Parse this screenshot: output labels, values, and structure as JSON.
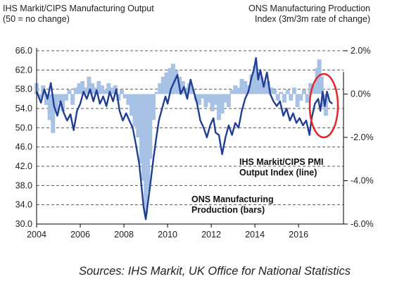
{
  "header": {
    "left_title": "IHS Markit/CIPS Manufacturing Output",
    "left_subtitle": "(50 = no change)",
    "right_title": "ONS Manufacturing Production",
    "right_subtitle": "Index (3m/3m rate of change)"
  },
  "annotations": {
    "line_label_1": "IHS Markit/CIPS PMI",
    "line_label_2": "Output Index (line)",
    "bar_label_1": "ONS Manufacturing",
    "bar_label_2": "Production (bars)"
  },
  "source": "Sources: IHS Markit, UK Office for National Statistics",
  "colors": {
    "line": "#1f3e94",
    "bars": "#a8c2e6",
    "highlight_circle": "#e3262b",
    "grid": "#555555"
  },
  "chart_data": {
    "type": "line",
    "x_ticks": [
      "2004",
      "2006",
      "2008",
      "2010",
      "2012",
      "2014",
      "2016"
    ],
    "xlim": [
      2004,
      2017.8
    ],
    "y_left": {
      "ticks": [
        "66.0",
        "62.0",
        "58.0",
        "54.0",
        "50.0",
        "46.0",
        "42.0",
        "38.0",
        "34.0",
        "30.0"
      ],
      "ylim": [
        30,
        66
      ]
    },
    "y_right": {
      "ticks": [
        "2.0%",
        "0.0%",
        "-2.0%",
        "-4.0%",
        "-6.0%"
      ],
      "ylim": [
        -6.0,
        2.0
      ]
    },
    "grid": "horizontal dashed",
    "highlight": "red ellipse around most recent data (2017)",
    "series": [
      {
        "name": "IHS Markit/CIPS PMI Output Index (line)",
        "axis": "left",
        "points": [
          [
            2004.0,
            57.5
          ],
          [
            2004.2,
            55.2
          ],
          [
            2004.35,
            58.0
          ],
          [
            2004.5,
            56.0
          ],
          [
            2004.65,
            59.3
          ],
          [
            2004.8,
            54.5
          ],
          [
            2004.95,
            52.5
          ],
          [
            2005.1,
            55.5
          ],
          [
            2005.25,
            53.0
          ],
          [
            2005.4,
            51.5
          ],
          [
            2005.55,
            52.8
          ],
          [
            2005.7,
            49.5
          ],
          [
            2005.85,
            53.5
          ],
          [
            2006.0,
            55.0
          ],
          [
            2006.15,
            57.5
          ],
          [
            2006.3,
            56.0
          ],
          [
            2006.45,
            58.0
          ],
          [
            2006.6,
            55.5
          ],
          [
            2006.75,
            57.8
          ],
          [
            2006.9,
            55.0
          ],
          [
            2007.05,
            56.5
          ],
          [
            2007.2,
            54.5
          ],
          [
            2007.35,
            57.5
          ],
          [
            2007.5,
            55.5
          ],
          [
            2007.65,
            58.0
          ],
          [
            2007.8,
            53.5
          ],
          [
            2007.95,
            51.5
          ],
          [
            2008.1,
            53.0
          ],
          [
            2008.25,
            51.5
          ],
          [
            2008.4,
            50.0
          ],
          [
            2008.55,
            46.5
          ],
          [
            2008.7,
            42.5
          ],
          [
            2008.8,
            38.0
          ],
          [
            2008.9,
            33.5
          ],
          [
            2009.0,
            31.0
          ],
          [
            2009.1,
            34.5
          ],
          [
            2009.2,
            38.0
          ],
          [
            2009.35,
            43.5
          ],
          [
            2009.5,
            48.5
          ],
          [
            2009.6,
            51.5
          ],
          [
            2009.75,
            54.0
          ],
          [
            2009.9,
            56.5
          ],
          [
            2010.0,
            55.0
          ],
          [
            2010.15,
            58.0
          ],
          [
            2010.3,
            59.5
          ],
          [
            2010.45,
            61.0
          ],
          [
            2010.6,
            57.0
          ],
          [
            2010.75,
            58.5
          ],
          [
            2010.9,
            56.0
          ],
          [
            2011.05,
            60.0
          ],
          [
            2011.2,
            57.5
          ],
          [
            2011.35,
            55.0
          ],
          [
            2011.5,
            51.5
          ],
          [
            2011.65,
            50.0
          ],
          [
            2011.8,
            48.0
          ],
          [
            2011.95,
            50.5
          ],
          [
            2012.1,
            52.0
          ],
          [
            2012.2,
            49.0
          ],
          [
            2012.35,
            48.5
          ],
          [
            2012.5,
            44.5
          ],
          [
            2012.65,
            48.0
          ],
          [
            2012.8,
            50.5
          ],
          [
            2012.95,
            48.5
          ],
          [
            2013.1,
            51.0
          ],
          [
            2013.25,
            50.0
          ],
          [
            2013.4,
            53.5
          ],
          [
            2013.55,
            56.0
          ],
          [
            2013.7,
            57.5
          ],
          [
            2013.85,
            60.5
          ],
          [
            2013.95,
            62.0
          ],
          [
            2014.05,
            64.5
          ],
          [
            2014.15,
            60.0
          ],
          [
            2014.25,
            62.0
          ],
          [
            2014.4,
            58.5
          ],
          [
            2014.55,
            61.5
          ],
          [
            2014.7,
            57.0
          ],
          [
            2014.85,
            55.5
          ],
          [
            2015.0,
            54.5
          ],
          [
            2015.15,
            55.5
          ],
          [
            2015.3,
            52.5
          ],
          [
            2015.45,
            54.0
          ],
          [
            2015.6,
            51.5
          ],
          [
            2015.75,
            53.0
          ],
          [
            2015.9,
            51.0
          ],
          [
            2016.05,
            52.0
          ],
          [
            2016.2,
            50.5
          ],
          [
            2016.35,
            51.5
          ],
          [
            2016.5,
            48.5
          ],
          [
            2016.6,
            52.0
          ],
          [
            2016.75,
            55.0
          ],
          [
            2016.9,
            56.0
          ],
          [
            2017.0,
            53.5
          ],
          [
            2017.1,
            57.5
          ],
          [
            2017.2,
            54.5
          ],
          [
            2017.3,
            57.5
          ],
          [
            2017.42,
            55.5
          ],
          [
            2017.55,
            55.0
          ]
        ]
      },
      {
        "name": "ONS Manufacturing Production (bars)",
        "axis": "right",
        "points": [
          [
            2004.0,
            0.5
          ],
          [
            2004.15,
            -0.2
          ],
          [
            2004.3,
            0.4
          ],
          [
            2004.45,
            -0.5
          ],
          [
            2004.6,
            -1.2
          ],
          [
            2004.75,
            -1.8
          ],
          [
            2004.9,
            -0.8
          ],
          [
            2005.05,
            -0.4
          ],
          [
            2005.2,
            -0.8
          ],
          [
            2005.35,
            -0.3
          ],
          [
            2005.5,
            0.2
          ],
          [
            2005.65,
            -0.5
          ],
          [
            2005.8,
            0.3
          ],
          [
            2005.95,
            0.5
          ],
          [
            2006.1,
            0.6
          ],
          [
            2006.25,
            0.3
          ],
          [
            2006.4,
            0.8
          ],
          [
            2006.55,
            0.5
          ],
          [
            2006.7,
            0.3
          ],
          [
            2006.85,
            0.6
          ],
          [
            2007.0,
            0.4
          ],
          [
            2007.15,
            0.2
          ],
          [
            2007.3,
            0.5
          ],
          [
            2007.45,
            0.3
          ],
          [
            2007.6,
            0.4
          ],
          [
            2007.75,
            -0.3
          ],
          [
            2007.9,
            0.2
          ],
          [
            2008.05,
            -0.2
          ],
          [
            2008.2,
            -0.5
          ],
          [
            2008.35,
            -1.0
          ],
          [
            2008.5,
            -1.5
          ],
          [
            2008.65,
            -2.0
          ],
          [
            2008.8,
            -3.2
          ],
          [
            2008.9,
            -4.0
          ],
          [
            2009.0,
            -5.5
          ],
          [
            2009.1,
            -4.5
          ],
          [
            2009.2,
            -3.0
          ],
          [
            2009.35,
            -1.2
          ],
          [
            2009.5,
            0.1
          ],
          [
            2009.65,
            0.5
          ],
          [
            2009.8,
            0.8
          ],
          [
            2009.95,
            1.0
          ],
          [
            2010.1,
            1.2
          ],
          [
            2010.25,
            1.4
          ],
          [
            2010.4,
            1.1
          ],
          [
            2010.55,
            0.8
          ],
          [
            2010.7,
            0.6
          ],
          [
            2010.85,
            0.3
          ],
          [
            2011.0,
            0.5
          ],
          [
            2011.15,
            0.2
          ],
          [
            2011.3,
            -0.3
          ],
          [
            2011.45,
            -0.5
          ],
          [
            2011.6,
            -0.2
          ],
          [
            2011.75,
            -0.6
          ],
          [
            2011.9,
            -0.4
          ],
          [
            2012.05,
            -0.8
          ],
          [
            2012.2,
            -0.5
          ],
          [
            2012.35,
            -1.2
          ],
          [
            2012.5,
            -0.9
          ],
          [
            2012.65,
            -0.4
          ],
          [
            2012.8,
            -0.6
          ],
          [
            2012.95,
            0.2
          ],
          [
            2013.1,
            0.4
          ],
          [
            2013.25,
            0.3
          ],
          [
            2013.4,
            0.7
          ],
          [
            2013.55,
            0.6
          ],
          [
            2013.7,
            0.4
          ],
          [
            2013.85,
            0.9
          ],
          [
            2014.0,
            1.3
          ],
          [
            2014.15,
            1.0
          ],
          [
            2014.3,
            0.8
          ],
          [
            2014.45,
            0.5
          ],
          [
            2014.6,
            0.6
          ],
          [
            2014.75,
            0.3
          ],
          [
            2014.9,
            0.2
          ],
          [
            2015.05,
            -0.3
          ],
          [
            2015.2,
            0.1
          ],
          [
            2015.35,
            -0.4
          ],
          [
            2015.5,
            0.2
          ],
          [
            2015.65,
            -0.3
          ],
          [
            2015.8,
            0.3
          ],
          [
            2015.95,
            -0.6
          ],
          [
            2016.1,
            -0.3
          ],
          [
            2016.25,
            0.2
          ],
          [
            2016.4,
            -0.4
          ],
          [
            2016.55,
            0.5
          ],
          [
            2016.7,
            0.4
          ],
          [
            2016.85,
            1.2
          ],
          [
            2016.95,
            1.6
          ],
          [
            2017.05,
            0.8
          ],
          [
            2017.15,
            -0.6
          ],
          [
            2017.25,
            -1.0
          ],
          [
            2017.35,
            0.0
          ]
        ]
      }
    ]
  }
}
